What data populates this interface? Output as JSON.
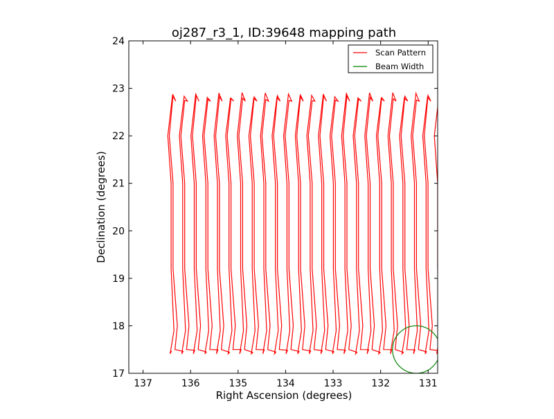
{
  "chart_data": {
    "type": "line",
    "title": "oj287_r3_1, ID:39648 mapping path",
    "xlabel": "Right Ascension (degrees)",
    "ylabel": "Declination (degrees)",
    "xlim": [
      137.3,
      130.8
    ],
    "ylim": [
      17,
      24
    ],
    "x_ticks": [
      137,
      136,
      135,
      134,
      133,
      132,
      131
    ],
    "y_ticks": [
      17,
      18,
      19,
      20,
      21,
      22,
      23,
      24
    ],
    "grid": false,
    "legend_position": "top-right",
    "series": [
      {
        "name": "Scan Pattern",
        "color": "#ff0000",
        "scan": {
          "ra_start": 136.43,
          "ra_end": 130.82,
          "legs": 47,
          "dec_min": 17.45,
          "dec_max": 22.85
        }
      },
      {
        "name": "Beam Width",
        "color": "#008000",
        "circle": {
          "ra_center": 131.25,
          "dec_center": 17.5,
          "radius_deg": 0.5
        }
      }
    ]
  }
}
